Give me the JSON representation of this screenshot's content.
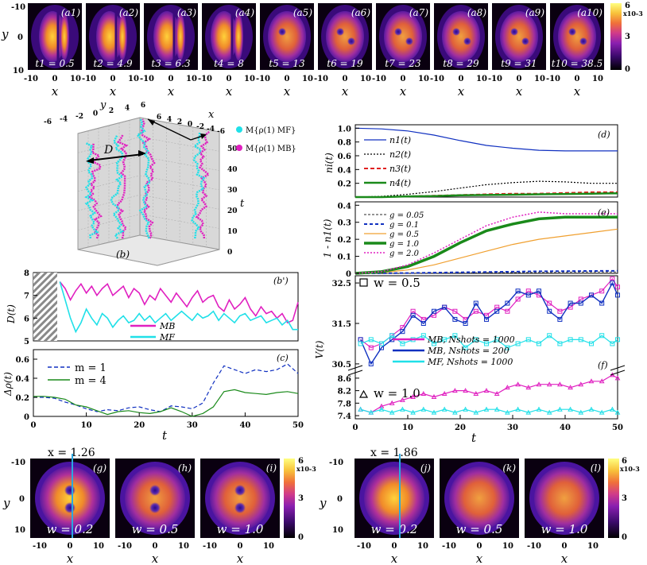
{
  "colors": {
    "density_ramp": [
      "#000000",
      "#3a0a6a",
      "#6a1fb0",
      "#b02fa0",
      "#e0507a",
      "#f38a3a",
      "#f8c23a",
      "#ffff80"
    ],
    "mb": "#e020c0",
    "mf": "#20e0e8",
    "blue": "#1030c0",
    "green": "#1a8a1a",
    "red": "#e02020",
    "orange": "#f0a030",
    "grid": "#b8b8b8",
    "cut_line": "#2aa8e0"
  },
  "panel_a": {
    "labels": [
      "(a1)",
      "(a2)",
      "(a3)",
      "(a4)",
      "(a5)",
      "(a6)",
      "(a7)",
      "(a8)",
      "(a9)",
      "(a10)"
    ],
    "times": [
      "t1 = 0.5",
      "t2 = 4.9",
      "t3 = 6.3",
      "t4 = 8",
      "t5 = 13",
      "t6 = 19",
      "t7 = 23",
      "t8 = 29",
      "t9 = 31",
      "t10 = 38.5"
    ],
    "ylabel": "y",
    "xlabel": "x",
    "yticks": [
      "-10",
      "0",
      "10"
    ],
    "xticks": [
      "-10",
      "0",
      "10"
    ],
    "colorbar": {
      "max": "6",
      "exponent": "x10-3",
      "mid": "3",
      "min": "0"
    }
  },
  "panel_b": {
    "label": "(b)",
    "y_axis": "y",
    "y_ticks": [
      "-6",
      "-4",
      "-2",
      "0",
      "2",
      "4",
      "6"
    ],
    "x_axis": "x",
    "x_ticks": [
      "6",
      "4",
      "2",
      "0",
      "-2",
      "-4",
      "-6"
    ],
    "t_axis": "t",
    "t_ticks": [
      "50",
      "40",
      "30",
      "20",
      "10",
      "0"
    ],
    "distance_label": "D",
    "legend": [
      "M{ρ(1) MF}",
      "M{ρ(1) MB}"
    ]
  },
  "chart_data": [
    {
      "id": "b_prime",
      "type": "line",
      "label": "(b')",
      "ylabel": "D(t)",
      "xlim": [
        0,
        50
      ],
      "ylim": [
        5,
        8
      ],
      "yticks": [
        "8",
        "7",
        "6",
        "5"
      ],
      "legend": [
        "MB",
        "MF"
      ],
      "x": [
        5,
        6,
        7,
        8,
        9,
        10,
        11,
        12,
        13,
        14,
        15,
        16,
        17,
        18,
        19,
        20,
        21,
        22,
        23,
        24,
        25,
        26,
        27,
        28,
        29,
        30,
        31,
        32,
        33,
        34,
        35,
        36,
        37,
        38,
        39,
        40,
        41,
        42,
        43,
        44,
        45,
        46,
        47,
        48,
        49,
        50
      ],
      "series": [
        {
          "name": "MB",
          "values": [
            7.6,
            7.3,
            6.8,
            7.2,
            7.5,
            7.1,
            7.4,
            7.0,
            7.3,
            7.5,
            7.0,
            7.2,
            7.4,
            6.9,
            7.3,
            7.1,
            6.6,
            7.0,
            6.8,
            7.3,
            7.0,
            6.7,
            7.1,
            6.8,
            6.5,
            6.9,
            7.2,
            6.7,
            6.9,
            7.0,
            6.5,
            6.3,
            6.8,
            6.4,
            6.6,
            6.9,
            6.4,
            6.1,
            6.5,
            6.2,
            6.3,
            6.0,
            6.2,
            5.8,
            5.9,
            6.7
          ]
        },
        {
          "name": "MF",
          "values": [
            7.6,
            6.8,
            6.0,
            5.4,
            5.8,
            6.4,
            6.0,
            5.7,
            6.2,
            6.0,
            5.6,
            5.9,
            6.1,
            5.8,
            5.9,
            6.2,
            5.9,
            6.1,
            5.8,
            6.0,
            6.2,
            5.9,
            6.1,
            6.3,
            6.1,
            5.9,
            6.2,
            6.0,
            6.1,
            6.3,
            5.9,
            6.2,
            6.0,
            5.8,
            6.1,
            6.2,
            5.9,
            6.0,
            6.1,
            5.8,
            5.9,
            6.0,
            5.7,
            5.9,
            5.5,
            5.5
          ]
        }
      ]
    },
    {
      "id": "c",
      "type": "line",
      "label": "(c)",
      "ylabel": "Δρ(t)",
      "xlabel": "t",
      "xlim": [
        0,
        50
      ],
      "ylim": [
        0,
        0.7
      ],
      "yticks": [
        "0.6",
        "0.4",
        "0.2",
        "0"
      ],
      "xticks": [
        "0",
        "10",
        "20",
        "30",
        "40",
        "50"
      ],
      "legend": [
        "m = 1",
        "m = 4"
      ],
      "x": [
        0,
        2,
        4,
        6,
        8,
        10,
        12,
        14,
        16,
        18,
        20,
        22,
        24,
        26,
        28,
        30,
        32,
        34,
        36,
        38,
        40,
        42,
        44,
        46,
        48,
        50
      ],
      "series": [
        {
          "name": "m = 1",
          "style": "dashed",
          "values": [
            0.2,
            0.2,
            0.19,
            0.15,
            0.12,
            0.08,
            0.05,
            0.07,
            0.06,
            0.09,
            0.1,
            0.07,
            0.05,
            0.11,
            0.1,
            0.08,
            0.14,
            0.35,
            0.53,
            0.49,
            0.45,
            0.49,
            0.47,
            0.49,
            0.55,
            0.45
          ]
        },
        {
          "name": "m = 4",
          "style": "solid",
          "values": [
            0.21,
            0.21,
            0.2,
            0.18,
            0.12,
            0.1,
            0.06,
            0.02,
            0.05,
            0.06,
            0.04,
            0.03,
            0.05,
            0.09,
            0.05,
            0.0,
            0.03,
            0.1,
            0.26,
            0.28,
            0.25,
            0.24,
            0.23,
            0.25,
            0.26,
            0.24
          ]
        }
      ]
    },
    {
      "id": "d",
      "type": "line",
      "label": "(d)",
      "ylabel": "ni(t)",
      "xlim": [
        0,
        50
      ],
      "ylim": [
        0,
        1.05
      ],
      "yticks": [
        "1.0",
        "0.8",
        "0.6",
        "0.4",
        "0.2"
      ],
      "legend": [
        "n1(t)",
        "n2(t)",
        "n3(t)",
        "n4(t)"
      ],
      "x": [
        0,
        5,
        10,
        15,
        20,
        25,
        30,
        35,
        40,
        45,
        50
      ],
      "series": [
        {
          "name": "n1(t)",
          "values": [
            1.0,
            0.99,
            0.96,
            0.9,
            0.82,
            0.75,
            0.71,
            0.68,
            0.67,
            0.67,
            0.67
          ]
        },
        {
          "name": "n2(t)",
          "values": [
            0.0,
            0.01,
            0.04,
            0.08,
            0.13,
            0.18,
            0.21,
            0.23,
            0.22,
            0.2,
            0.2
          ]
        },
        {
          "name": "n3(t)",
          "values": [
            0.0,
            0.0,
            0.01,
            0.02,
            0.03,
            0.04,
            0.05,
            0.05,
            0.06,
            0.07,
            0.07
          ]
        },
        {
          "name": "n4(t)",
          "values": [
            0.0,
            0.0,
            0.01,
            0.015,
            0.025,
            0.03,
            0.035,
            0.04,
            0.045,
            0.05,
            0.055
          ]
        }
      ]
    },
    {
      "id": "e",
      "type": "line",
      "label": "(e)",
      "ylabel": "1 - n1(t)",
      "xlim": [
        0,
        50
      ],
      "ylim": [
        0,
        0.42
      ],
      "yticks": [
        "0.4",
        "0.3",
        "0.2",
        "0.1",
        "0"
      ],
      "legend": [
        "g = 0.05",
        "g = 0.1",
        "g = 0.5",
        "g = 1.0",
        "g = 2.0"
      ],
      "x": [
        0,
        5,
        10,
        15,
        20,
        25,
        30,
        35,
        40,
        45,
        50
      ],
      "series": [
        {
          "name": "g = 0.05",
          "values": [
            0.0,
            0.0,
            0.001,
            0.002,
            0.003,
            0.004,
            0.005,
            0.006,
            0.007,
            0.008,
            0.008
          ]
        },
        {
          "name": "g = 0.1",
          "values": [
            0.0,
            0.001,
            0.002,
            0.004,
            0.006,
            0.008,
            0.01,
            0.012,
            0.013,
            0.014,
            0.015
          ]
        },
        {
          "name": "g = 0.5",
          "values": [
            0.0,
            0.005,
            0.02,
            0.05,
            0.09,
            0.13,
            0.17,
            0.2,
            0.22,
            0.24,
            0.26
          ]
        },
        {
          "name": "g = 1.0",
          "values": [
            0.0,
            0.01,
            0.04,
            0.1,
            0.18,
            0.25,
            0.29,
            0.32,
            0.33,
            0.33,
            0.33
          ]
        },
        {
          "name": "g = 2.0",
          "values": [
            0.0,
            0.01,
            0.05,
            0.12,
            0.2,
            0.28,
            0.33,
            0.36,
            0.35,
            0.35,
            0.35
          ]
        }
      ]
    },
    {
      "id": "f",
      "type": "line",
      "label": "(f)",
      "ylabel": "V(t)",
      "xlabel": "t",
      "xlim": [
        0,
        50
      ],
      "xticks": [
        "0",
        "10",
        "20",
        "30",
        "40",
        "50"
      ],
      "upper": {
        "title": "w = 0.5",
        "ylim": [
          30.4,
          32.6
        ],
        "yticks": [
          "32.5",
          "31.5",
          "30.5"
        ],
        "ytick_vals": [
          32.5,
          31.5,
          30.5
        ]
      },
      "lower": {
        "title": "w = 1.0",
        "ylim": [
          7.3,
          8.8
        ],
        "yticks": [
          "8.6",
          "8.2",
          "7.8",
          "7.4"
        ],
        "ytick_vals": [
          8.6,
          8.2,
          7.8,
          7.4
        ]
      },
      "legend": [
        "MB, Nshots = 1000",
        "MB, Nshots = 200",
        "MF, Nshots = 1000"
      ],
      "x": [
        1,
        3,
        5,
        7,
        9,
        11,
        13,
        15,
        17,
        19,
        21,
        23,
        25,
        27,
        29,
        31,
        33,
        35,
        37,
        39,
        41,
        43,
        45,
        47,
        49,
        50
      ],
      "series": [
        {
          "name": "MB, Nshots = 1000 (w = 0.5)",
          "panel": "upper",
          "values": [
            31.1,
            30.9,
            31.0,
            31.2,
            31.4,
            31.8,
            31.6,
            31.7,
            31.9,
            31.8,
            31.6,
            31.8,
            31.7,
            31.9,
            31.8,
            32.1,
            32.3,
            32.2,
            32.0,
            31.8,
            31.9,
            32.1,
            32.2,
            32.3,
            32.6,
            32.4
          ]
        },
        {
          "name": "MB, Nshots = 200 (w = 0.5)",
          "panel": "upper",
          "values": [
            31.1,
            30.5,
            30.9,
            31.1,
            31.3,
            31.7,
            31.5,
            31.8,
            31.9,
            31.6,
            31.5,
            32.0,
            31.6,
            31.8,
            32.0,
            32.3,
            32.2,
            32.3,
            31.8,
            31.6,
            32.0,
            32.0,
            32.2,
            32.0,
            32.5,
            32.2
          ]
        },
        {
          "name": "MF, Nshots = 1000 (w = 0.5)",
          "panel": "upper",
          "values": [
            31.0,
            31.1,
            31.0,
            31.2,
            31.0,
            31.1,
            31.2,
            31.0,
            31.1,
            31.2,
            30.9,
            31.1,
            31.0,
            31.1,
            30.9,
            31.0,
            31.1,
            31.0,
            31.2,
            31.0,
            31.1,
            31.1,
            31.0,
            31.2,
            31.0,
            31.1
          ]
        },
        {
          "name": "MB, Nshots = 1000 (w = 1.0)",
          "panel": "lower",
          "values": [
            7.6,
            7.5,
            7.7,
            7.8,
            7.9,
            8.0,
            8.1,
            8.0,
            8.1,
            8.2,
            8.2,
            8.1,
            8.2,
            8.1,
            8.3,
            8.4,
            8.3,
            8.4,
            8.4,
            8.4,
            8.3,
            8.4,
            8.5,
            8.5,
            8.7,
            8.6
          ]
        },
        {
          "name": "MF, Nshots = 1000 (w = 1.0)",
          "panel": "lower",
          "values": [
            7.6,
            7.5,
            7.6,
            7.5,
            7.6,
            7.5,
            7.6,
            7.5,
            7.6,
            7.5,
            7.6,
            7.5,
            7.6,
            7.6,
            7.5,
            7.6,
            7.5,
            7.6,
            7.5,
            7.6,
            7.6,
            7.5,
            7.6,
            7.5,
            7.6,
            7.5
          ]
        }
      ]
    }
  ],
  "panel_gi": {
    "cut_label": "x = 1.26",
    "labels": [
      "(g)",
      "(h)",
      "(i)"
    ],
    "w_labels": [
      "w = 0.2",
      "w = 0.5",
      "w = 1.0"
    ],
    "ylabel": "y",
    "xlabel": "x",
    "yticks": [
      "-10",
      "0",
      "10"
    ],
    "xticks": [
      "-10",
      "0",
      "10"
    ],
    "colorbar": {
      "max": "6",
      "exponent": "x10-3",
      "mid": "3",
      "min": "0"
    }
  },
  "panel_jl": {
    "cut_label": "x = 1.86",
    "labels": [
      "(j)",
      "(k)",
      "(l)"
    ],
    "w_labels": [
      "w = 0.2",
      "w = 0.5",
      "w = 1.0"
    ],
    "ylabel": "y",
    "xlabel": "x",
    "yticks": [
      "-10",
      "0",
      "10"
    ],
    "xticks": [
      "-10",
      "0",
      "10"
    ],
    "colorbar": {
      "max": "6",
      "exponent": "x10-3",
      "mid": "3",
      "min": "0"
    }
  }
}
